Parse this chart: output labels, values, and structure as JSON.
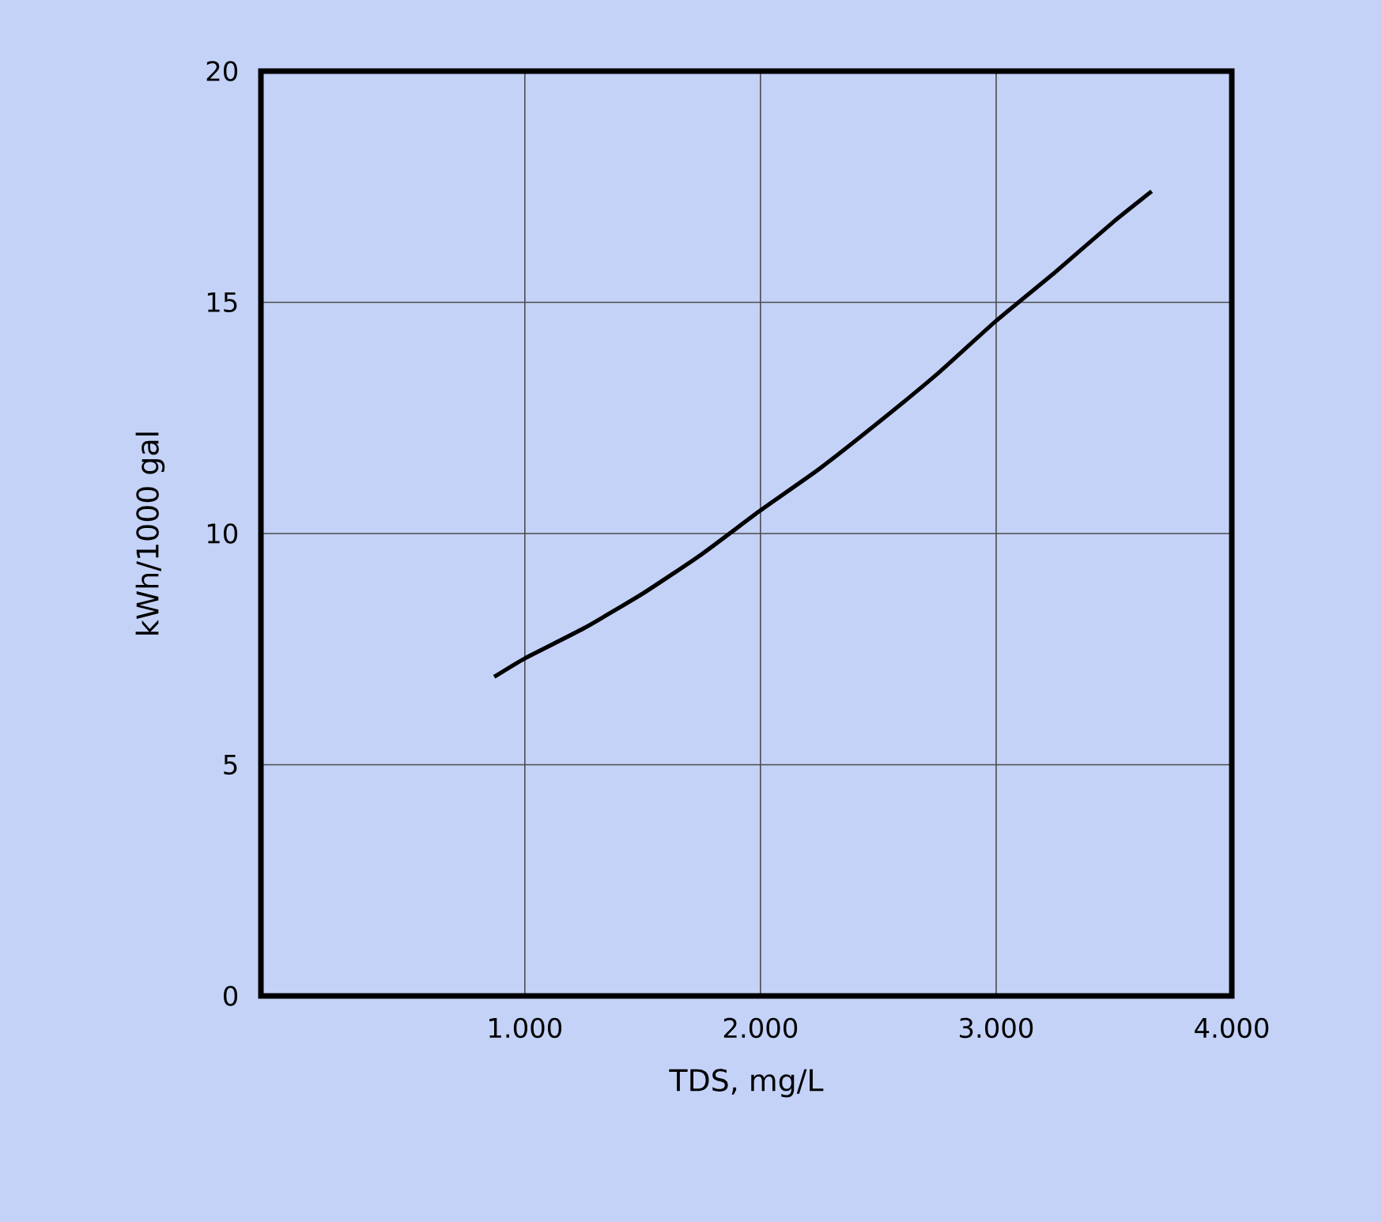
{
  "chart_data": {
    "type": "line",
    "xlabel": "TDS, mg/L",
    "ylabel": "kWh/1000 gal",
    "x": [
      870,
      1000,
      1250,
      1500,
      1750,
      2000,
      2250,
      2500,
      2750,
      3000,
      3250,
      3500,
      3660
    ],
    "series": [
      {
        "color": "#000000",
        "values": [
          6.9,
          7.3,
          7.95,
          8.7,
          9.55,
          10.5,
          11.4,
          12.4,
          13.45,
          14.6,
          15.65,
          16.75,
          17.4
        ]
      }
    ],
    "xlim": [
      -120,
      4000
    ],
    "ylim": [
      0,
      20
    ],
    "xticks": [
      {
        "value": 1000,
        "label": "1.000"
      },
      {
        "value": 2000,
        "label": "2.000"
      },
      {
        "value": 3000,
        "label": "3.000"
      },
      {
        "value": 4000,
        "label": "4.000"
      }
    ],
    "yticks": [
      0,
      5,
      10,
      15,
      20
    ],
    "grid": true,
    "marker": "none",
    "line_style": "solid"
  }
}
